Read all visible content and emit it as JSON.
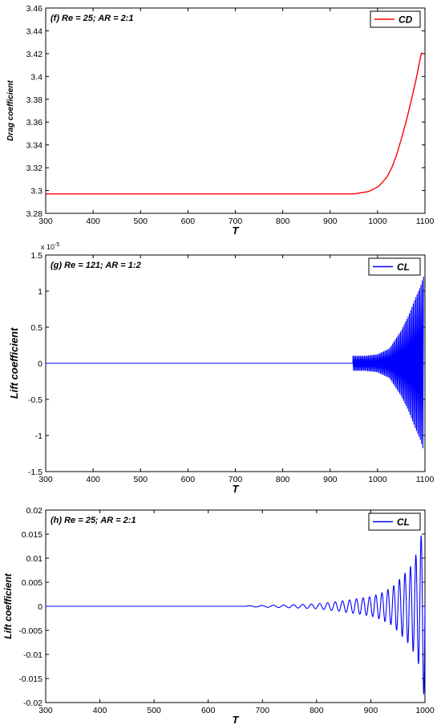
{
  "chart_data": [
    {
      "type": "line",
      "annotation": "(f) Re = 25; AR = 2:1",
      "xlabel": "T",
      "ylabel": "Drag coefficient",
      "xlim": [
        300,
        1100
      ],
      "ylim": [
        3.28,
        3.46
      ],
      "x_ticks": [
        "300",
        "400",
        "500",
        "600",
        "700",
        "800",
        "900",
        "1000",
        "1100"
      ],
      "y_ticks": [
        "3.28",
        "3.3",
        "3.32",
        "3.34",
        "3.36",
        "3.38",
        "3.4",
        "3.42",
        "3.44",
        "3.46"
      ],
      "y_exponent": "",
      "legend": {
        "entries": [
          "CD"
        ],
        "placement": "top-right"
      },
      "color": "#ff0000",
      "grid": false,
      "series": [
        {
          "name": "CD",
          "x": [
            300,
            400,
            500,
            600,
            700,
            800,
            900,
            950,
            980,
            1000,
            1010,
            1020,
            1030,
            1040,
            1050,
            1060,
            1070,
            1080,
            1085,
            1090,
            1093
          ],
          "y": [
            3.297,
            3.297,
            3.297,
            3.297,
            3.297,
            3.297,
            3.297,
            3.297,
            3.299,
            3.303,
            3.307,
            3.312,
            3.32,
            3.331,
            3.345,
            3.36,
            3.377,
            3.395,
            3.405,
            3.416,
            3.421
          ]
        }
      ]
    },
    {
      "type": "line",
      "annotation": "(g) Re = 121; AR = 1:2",
      "xlabel": "T",
      "ylabel": "Lift coefficient",
      "xlim": [
        300,
        1100
      ],
      "ylim": [
        -1.5,
        1.5
      ],
      "x_ticks": [
        "300",
        "400",
        "500",
        "600",
        "700",
        "800",
        "900",
        "1000",
        "1100"
      ],
      "y_ticks": [
        "-1.5",
        "-1",
        "-0.5",
        "0",
        "0.5",
        "1",
        "1.5"
      ],
      "y_exponent": "x 10",
      "y_exponent_power": "-5",
      "legend": {
        "entries": [
          "CL"
        ],
        "placement": "top-right"
      },
      "color": "#0000ff",
      "grid": false,
      "series": [
        {
          "name": "CL",
          "baseline_until_x": 948,
          "oscillation_envelope": {
            "x": [
              948,
              975,
              1000,
              1025,
              1050,
              1065,
              1080,
              1090,
              1097
            ],
            "amplitude": [
              0.1,
              0.1,
              0.12,
              0.2,
              0.45,
              0.65,
              0.9,
              1.05,
              1.2
            ]
          },
          "x_end": 1097
        }
      ]
    },
    {
      "type": "line",
      "annotation": "(h) Re = 25; AR = 2:1",
      "xlabel": "T",
      "ylabel": "Lift coefficient",
      "xlim": [
        300,
        1000
      ],
      "ylim": [
        -0.02,
        0.02
      ],
      "x_ticks": [
        "300",
        "400",
        "500",
        "600",
        "700",
        "800",
        "900",
        "1000"
      ],
      "y_ticks": [
        "-0.02",
        "-0.015",
        "-0.01",
        "-0.005",
        "0",
        "0.005",
        "0.01",
        "0.015",
        "0.02"
      ],
      "y_exponent": "",
      "legend": {
        "entries": [
          "CL"
        ],
        "placement": "top-right"
      },
      "color": "#0000ff",
      "grid": false,
      "series": [
        {
          "name": "CL",
          "baseline_until_x": 670,
          "oscillation_envelope": {
            "x": [
              670,
              750,
              800,
              840,
              870,
              900,
              920,
              940,
              960,
              975,
              990,
              1000
            ],
            "amplitude": [
              0.0001,
              0.0003,
              0.0005,
              0.001,
              0.0015,
              0.002,
              0.0028,
              0.004,
              0.0065,
              0.0085,
              0.0125,
              0.02
            ]
          },
          "x_end": 1000
        }
      ]
    }
  ]
}
